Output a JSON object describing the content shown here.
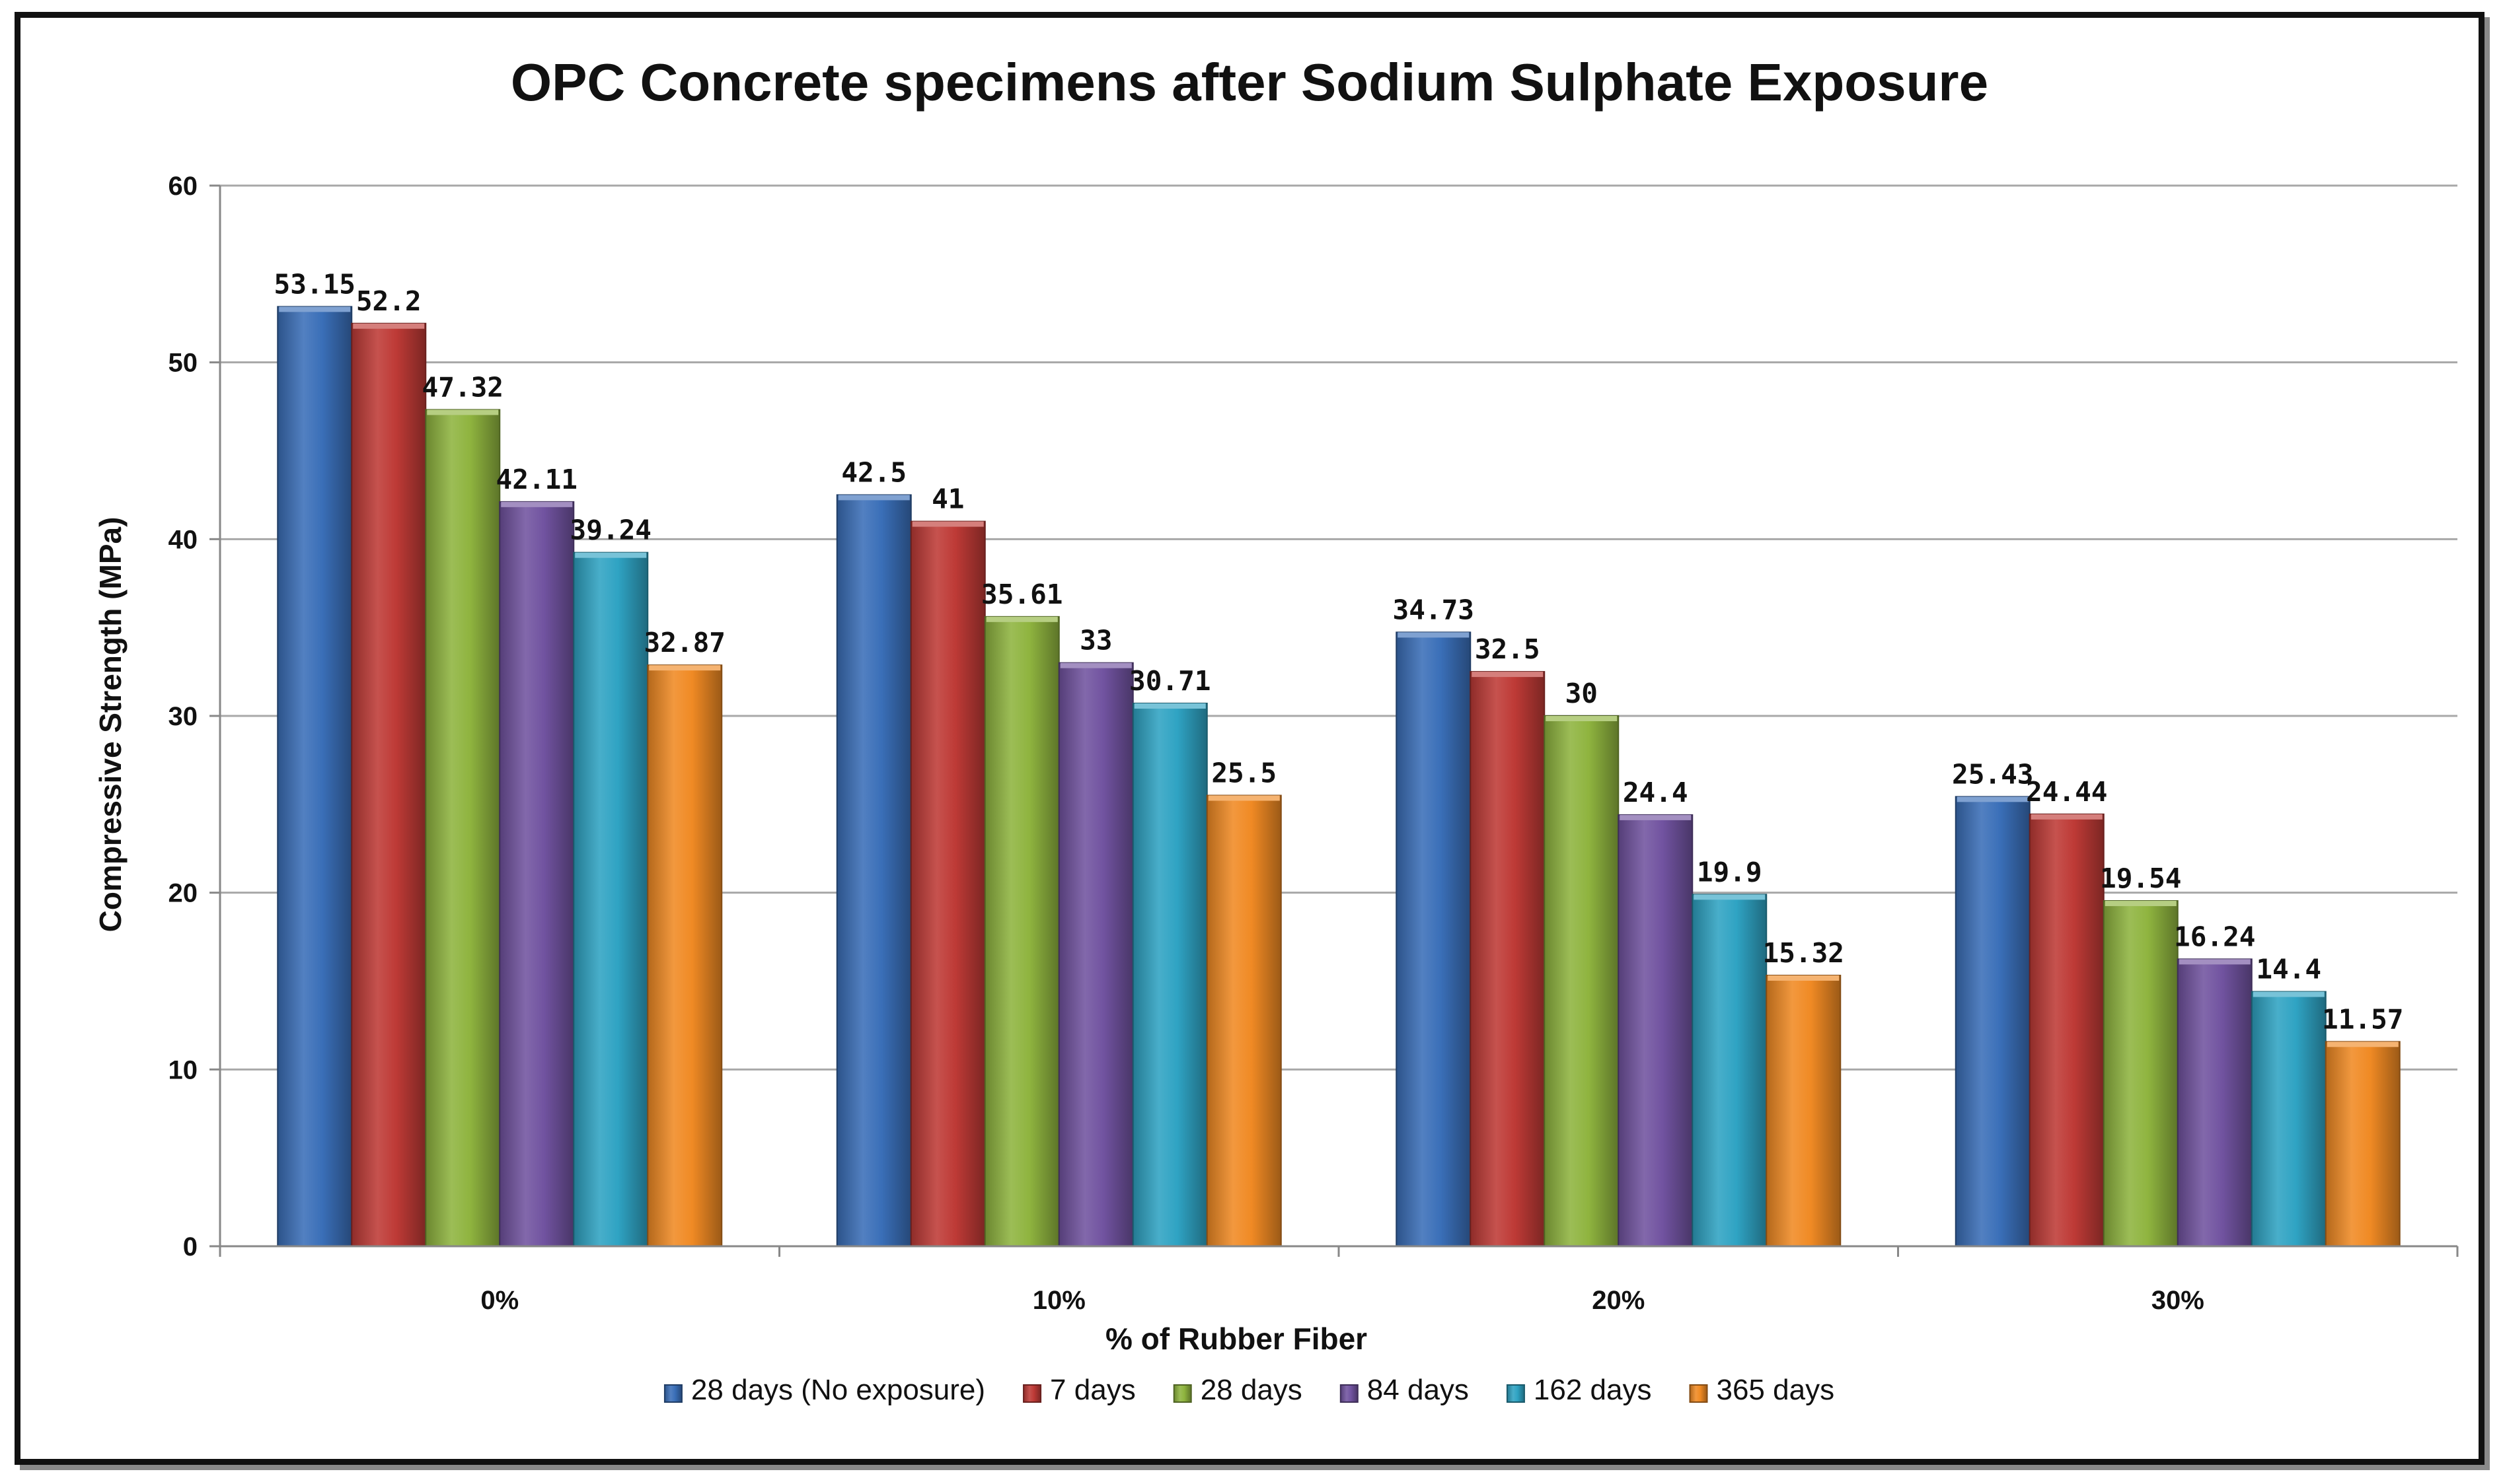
{
  "chart_data": {
    "type": "bar",
    "title": "OPC Concrete specimens after Sodium Sulphate Exposure",
    "xlabel": "% of Rubber Fiber",
    "ylabel": "Compressive Strength  (MPa)",
    "categories": [
      "0%",
      "10%",
      "20%",
      "30%"
    ],
    "ylim": [
      0,
      60
    ],
    "yticks": [
      0,
      10,
      20,
      30,
      40,
      50,
      60
    ],
    "grid": true,
    "legend_position": "bottom",
    "series": [
      {
        "name": "28 days (No exposure)",
        "color": "#3A6FB8",
        "values": [
          53.15,
          42.5,
          34.73,
          25.43
        ],
        "labels": [
          "53.15",
          "42.5",
          "34.73",
          "25.43"
        ]
      },
      {
        "name": "7 days",
        "color": "#BE3A36",
        "values": [
          52.2,
          41,
          32.5,
          24.44
        ],
        "labels": [
          "52.2",
          "41",
          "32.5",
          "24.44"
        ]
      },
      {
        "name": "28 days",
        "color": "#8FB43F",
        "values": [
          47.32,
          35.61,
          30,
          19.54
        ],
        "labels": [
          "47.32",
          "35.61",
          "30",
          "19.54"
        ]
      },
      {
        "name": "84 days",
        "color": "#7153A0",
        "values": [
          42.11,
          33,
          24.4,
          16.24
        ],
        "labels": [
          "42.11",
          "33",
          "24.4",
          "16.24"
        ]
      },
      {
        "name": "162 days",
        "color": "#2FA3C3",
        "values": [
          39.24,
          30.71,
          19.9,
          14.4
        ],
        "labels": [
          "39.24",
          "30.71",
          "19.9",
          "14.4"
        ]
      },
      {
        "name": "365 days",
        "color": "#F08A24",
        "values": [
          32.87,
          25.5,
          15.32,
          11.57
        ],
        "labels": [
          "32.87",
          "25.5",
          "15.32",
          "11.57"
        ]
      }
    ]
  }
}
